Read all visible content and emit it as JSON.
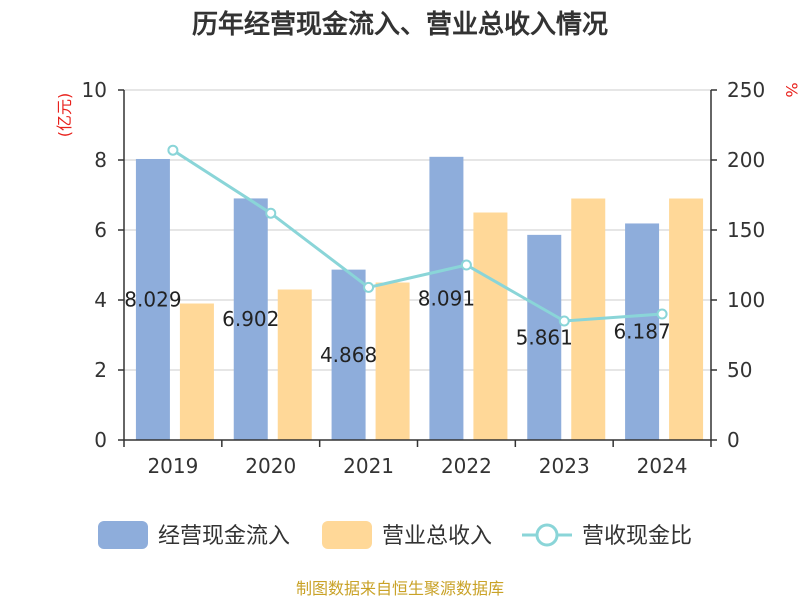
{
  "chart_data": {
    "type": "bar",
    "title": "历年经营现金流入、营业总收入情况",
    "categories": [
      "2019",
      "2020",
      "2021",
      "2022",
      "2023",
      "2024"
    ],
    "series": [
      {
        "name": "经营现金流入",
        "kind": "bar",
        "axis": "left",
        "color": "#8eaddb",
        "values": [
          8.029,
          6.902,
          4.868,
          8.091,
          5.861,
          6.187
        ]
      },
      {
        "name": "营业总收入",
        "kind": "bar",
        "axis": "left",
        "color": "#ffd898",
        "values": [
          3.9,
          4.3,
          4.5,
          6.5,
          6.9,
          6.9
        ]
      },
      {
        "name": "营收现金比",
        "kind": "line",
        "axis": "right",
        "color": "#8ad5d8",
        "values": [
          207,
          162,
          109,
          125,
          85,
          90
        ]
      }
    ],
    "data_labels": [
      "8.029",
      "6.902",
      "4.868",
      "8.091",
      "5.861",
      "6.187"
    ],
    "y_left": {
      "unit": "(亿元)",
      "range": [
        0,
        10
      ],
      "ticks": [
        "0",
        "2",
        "4",
        "6",
        "8",
        "10"
      ]
    },
    "y_right": {
      "unit": "%",
      "range": [
        0,
        250
      ],
      "ticks": [
        "0",
        "50",
        "100",
        "150",
        "200",
        "250"
      ]
    },
    "grid": true,
    "legend_position": "bottom"
  },
  "footer": {
    "source": "制图数据来自恒生聚源数据库"
  }
}
